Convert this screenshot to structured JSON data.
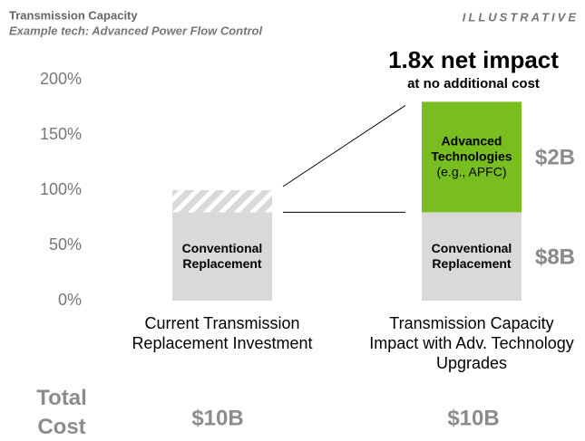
{
  "chart_data": {
    "type": "stacked_bar",
    "title": "Transmission Capacity",
    "subtitle": "Example tech: Advanced Power Flow Control",
    "tag": "ILLUSTRATIVE",
    "annotation": {
      "headline": "1.8x net impact",
      "subline": "at no additional cost"
    },
    "categories": [
      "Current Transmission Replacement Investment",
      "Transmission Capacity Impact with Adv. Technology Upgrades"
    ],
    "series": [
      {
        "name": "Conventional Replacement",
        "color": "#d9d9d9",
        "values": [
          80,
          80
        ],
        "cost": "$8B"
      },
      {
        "color": "#d9d9d9",
        "pattern": "hatch",
        "values": [
          20,
          null
        ]
      },
      {
        "name": "Advanced Technologies",
        "detail": "(e.g., APFC)",
        "color": "#78be20",
        "values": [
          null,
          100
        ],
        "cost": "$2B"
      }
    ],
    "ylim": [
      0,
      200
    ],
    "yticks": [
      {
        "value": 0,
        "label": "0%"
      },
      {
        "value": 50,
        "label": "50%"
      },
      {
        "value": 100,
        "label": "100%"
      },
      {
        "value": 150,
        "label": "150%"
      },
      {
        "value": 200,
        "label": "200%"
      }
    ],
    "total_cost": {
      "label": "Total Cost",
      "values": [
        "$10B",
        "$10B"
      ]
    }
  }
}
